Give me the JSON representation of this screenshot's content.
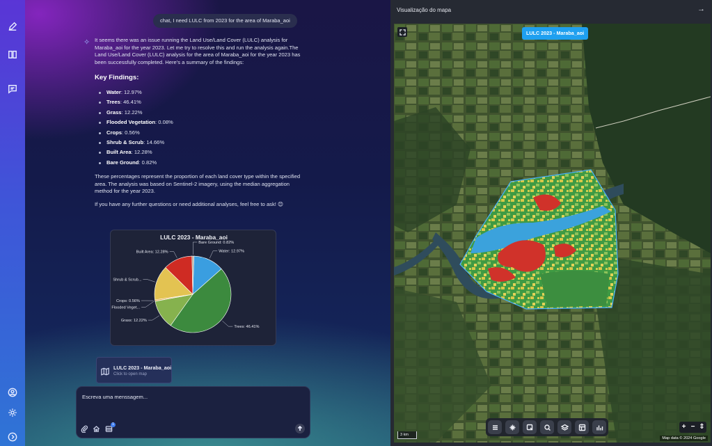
{
  "chat": {
    "user_message": "chat, I need LULC from 2023 for the area of Maraba_aoi",
    "assistant_intro": "It seems there was an issue running the Land Use/Land Cover (LULC) analysis for Maraba_aoi for the year 2023. Let me try to resolve this and run the analysis again.The Land Use/Land Cover (LULC) analysis for the area of Maraba_aoi for the year 2023 has been successfully completed. Here's a summary of the findings:",
    "key_findings_heading": "Key Findings:",
    "findings": [
      {
        "label": "Water",
        "value": ": 12.97%"
      },
      {
        "label": "Trees",
        "value": ": 46.41%"
      },
      {
        "label": "Grass",
        "value": ": 12.22%"
      },
      {
        "label": "Flooded Vegetation",
        "value": ": 0.08%"
      },
      {
        "label": "Crops",
        "value": ": 0.56%"
      },
      {
        "label": "Shrub & Scrub",
        "value": ": 14.66%"
      },
      {
        "label": "Built Area",
        "value": ": 12.28%"
      },
      {
        "label": "Bare Ground",
        "value": ": 0.82%"
      }
    ],
    "summary_paragraph": "These percentages represent the proportion of each land cover type within the specified area. The analysis was based on Sentinel-2 imagery, using the median aggregation method for the year 2023.",
    "closing": "If you have any further questions or need additional analyses, feel free to ask! 😊",
    "map_link": {
      "title": "LULC 2023 - Maraba_aoi",
      "subtitle": "Click to open map"
    },
    "composer": {
      "placeholder": "Escreva uma menssagem...",
      "badge_count": "1"
    }
  },
  "chart_data": {
    "type": "pie",
    "title": "LULC 2023 - Maraba_aoi",
    "slices": [
      {
        "name": "Water",
        "label": "Water: 12.97%",
        "value": 12.97,
        "color": "#3a9ee0"
      },
      {
        "name": "Trees",
        "label": "Trees: 46.41%",
        "value": 46.41,
        "color": "#3c8a3e"
      },
      {
        "name": "Grass",
        "label": "Grass: 12.22%",
        "value": 12.22,
        "color": "#86b24e"
      },
      {
        "name": "Flooded Vegetation",
        "label": "Flooded Veget...",
        "value": 0.08,
        "color": "#6a76c8"
      },
      {
        "name": "Crops",
        "label": "Crops: 0.56%",
        "value": 0.56,
        "color": "#e0a640"
      },
      {
        "name": "Shrub & Scrub",
        "label": "Shrub & Scrub...",
        "value": 14.66,
        "color": "#e3c352"
      },
      {
        "name": "Built Area",
        "label": "Built Area: 12.28%",
        "value": 12.28,
        "color": "#cf2b23"
      },
      {
        "name": "Bare Ground",
        "label": "Bare Ground: 0.82%",
        "value": 0.82,
        "color": "#b9a995"
      }
    ]
  },
  "map": {
    "header_title": "Visualização do mapa",
    "close_arrow": "→",
    "layer_chip": "LULC 2023 - Maraba_aoi",
    "zoom_in": "+",
    "zoom_out": "−",
    "zoom_more": "⇕",
    "scale": "3 km",
    "attribution": "Map data © 2024 Google"
  }
}
